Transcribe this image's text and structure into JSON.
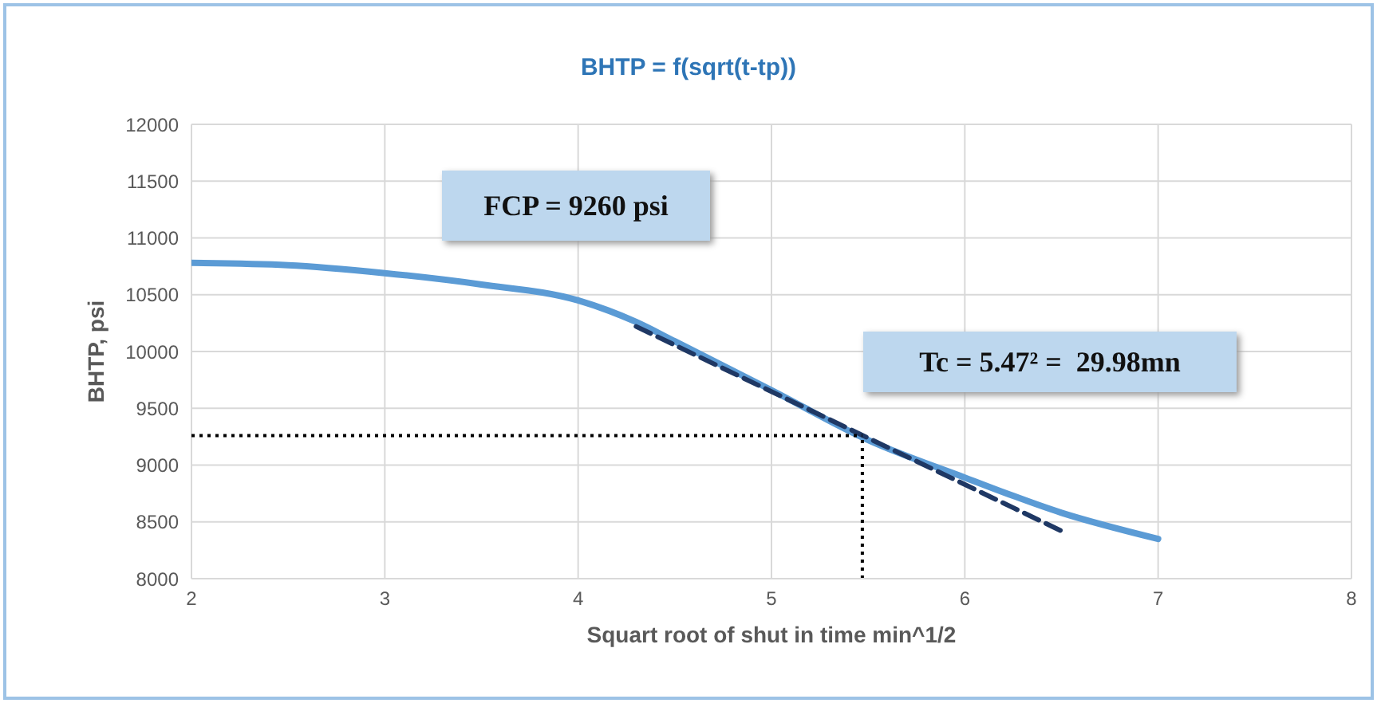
{
  "chart_data": {
    "type": "line",
    "title": "BHTP = f(sqrt(t-tp))",
    "xlabel": "Squart root of shut in time min^1/2",
    "ylabel": "BHTP, psi",
    "xlim": [
      2,
      8
    ],
    "xticks": [
      2,
      3,
      4,
      5,
      6,
      7,
      8
    ],
    "ylim": [
      8000,
      12000
    ],
    "yticks": [
      8000,
      8500,
      9000,
      9500,
      10000,
      10500,
      11000,
      11500,
      12000
    ],
    "grid": true,
    "legend": false,
    "marker": "none",
    "series": [
      {
        "color": "#5b9bd5",
        "line_style": "solid",
        "x": [
          2,
          2.5,
          3,
          3.5,
          4,
          4.3,
          4.5,
          5,
          5.5,
          6,
          6.5,
          7
        ],
        "values": [
          10780,
          10760,
          10690,
          10590,
          10450,
          10260,
          10090,
          9660,
          9220,
          8890,
          8580,
          8350
        ]
      },
      {
        "color": "#1f3864",
        "line_style": "dashed",
        "x": [
          4.3,
          6.5
        ],
        "values": [
          10220,
          8420
        ]
      }
    ],
    "ref_lines": [
      {
        "axis": "y",
        "value": 9260,
        "color": "#000000",
        "line_style": "dotted"
      },
      {
        "axis": "x",
        "value": 5.47,
        "color": "#000000",
        "line_style": "dotted"
      }
    ],
    "annotations": [
      "FCP = 9260 psi",
      "Tc = 5.47² =  29.98mn"
    ]
  }
}
